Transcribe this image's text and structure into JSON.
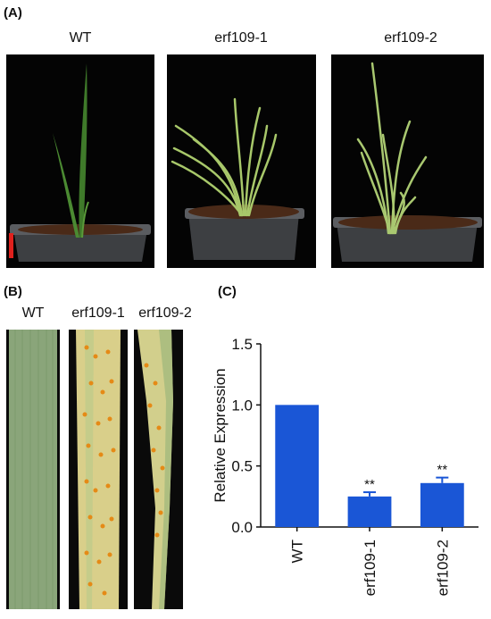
{
  "panels": {
    "a": "(A)",
    "b": "(B)",
    "c": "(C)"
  },
  "panel_a": {
    "labels": [
      "WT",
      "erf109-1",
      "erf109-2"
    ],
    "scale_bar_color": "#e0211d"
  },
  "panel_b": {
    "labels": [
      "WT",
      "erf109-1",
      "erf109-2"
    ]
  },
  "chart_data": {
    "type": "bar",
    "categories": [
      "WT",
      "erf109-1",
      "erf109-2"
    ],
    "values": [
      1.0,
      0.25,
      0.36
    ],
    "errors": [
      0,
      0.035,
      0.045
    ],
    "significance": [
      "",
      "**",
      "**"
    ],
    "ylabel": "Relative Expression",
    "xlabel": "",
    "ylim": [
      0,
      1.5
    ],
    "yticks": [
      "0.0",
      "0.5",
      "1.0",
      "1.5"
    ],
    "bar_color": "#1a56d6",
    "grid": false
  }
}
